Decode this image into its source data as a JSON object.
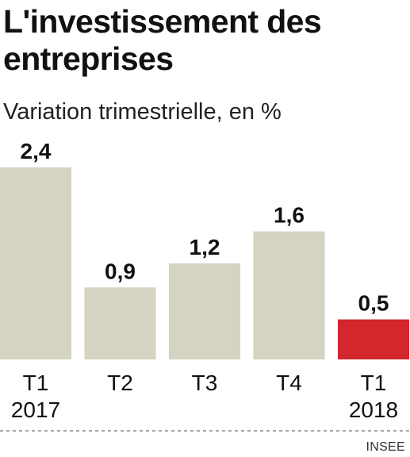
{
  "title": "L'investissement des entreprises",
  "subtitle": "Variation trimestrielle, en %",
  "source": "INSEE",
  "colors": {
    "bar": "#d5d3c1",
    "highlight": "#d3262d",
    "baseline": "#888888"
  },
  "chart_data": {
    "type": "bar",
    "title": "L'investissement des entreprises",
    "subtitle": "Variation trimestrielle, en %",
    "xlabel": "",
    "ylabel": "",
    "ylim": [
      0,
      2.4
    ],
    "grid": false,
    "categories": [
      [
        "T1",
        "2017"
      ],
      [
        "T2"
      ],
      [
        "T3"
      ],
      [
        "T4"
      ],
      [
        "T1",
        "2018"
      ]
    ],
    "values": [
      2.4,
      0.9,
      1.2,
      1.6,
      0.5
    ],
    "value_labels": [
      "2,4",
      "0,9",
      "1,2",
      "1,6",
      "0,5"
    ],
    "highlighted_index": 4
  }
}
